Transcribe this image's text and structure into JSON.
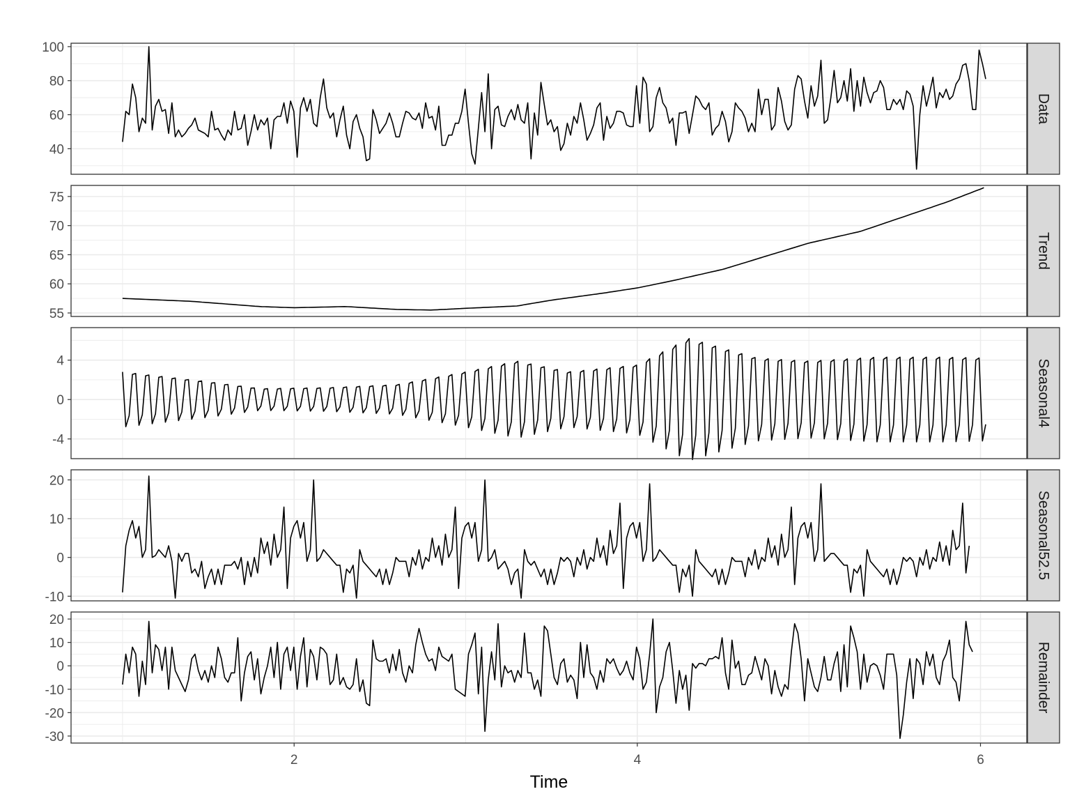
{
  "chart_data": {
    "type": "line",
    "xlabel": "Time",
    "x_ticks": [
      2,
      4,
      6
    ],
    "x_minor_ticks": [
      1,
      3,
      5
    ],
    "xlim": [
      0.7,
      6.27
    ],
    "x_start": 1.0,
    "x_step": 0.0192,
    "grid": true,
    "line_color": "#000000",
    "grid_color": "#ebebeb",
    "strip_fill": "#d9d9d9",
    "panels": [
      {
        "name": "Data",
        "ylim": [
          25,
          102
        ],
        "y_ticks": [
          40,
          60,
          80,
          100
        ],
        "y_minor_ticks": [
          30,
          50,
          70,
          90
        ],
        "values": [
          44,
          62,
          60,
          78,
          70,
          50,
          58,
          55,
          100,
          51,
          65,
          69,
          62,
          63,
          49,
          67,
          47,
          51,
          47,
          49,
          52,
          54,
          58,
          51,
          50,
          49,
          47,
          62,
          51,
          52,
          48,
          45,
          51,
          48,
          62,
          51,
          52,
          60,
          42,
          50,
          60,
          51,
          57,
          54,
          58,
          40,
          57,
          59,
          59,
          67,
          55,
          68,
          62,
          35,
          64,
          70,
          62,
          69,
          55,
          53,
          70,
          81,
          64,
          58,
          61,
          47,
          57,
          65,
          48,
          40,
          56,
          60,
          52,
          47,
          33,
          34,
          63,
          57,
          49,
          52,
          55,
          61,
          55,
          47,
          47,
          55,
          62,
          61,
          58,
          57,
          61,
          52,
          67,
          58,
          59,
          51,
          65,
          42,
          42,
          48,
          48,
          55,
          55,
          62,
          75,
          55,
          37,
          31,
          52,
          73,
          50,
          84,
          40,
          63,
          65,
          54,
          53,
          59,
          63,
          57,
          66,
          57,
          55,
          67,
          34,
          61,
          48,
          79,
          66,
          54,
          57,
          50,
          53,
          39,
          43,
          55,
          48,
          59,
          55,
          67,
          57,
          45,
          49,
          54,
          64,
          67,
          45,
          59,
          52,
          55,
          62,
          62,
          61,
          54,
          53,
          53,
          77,
          55,
          82,
          78,
          50,
          53,
          70,
          76,
          67,
          64,
          55,
          58,
          42,
          61,
          61,
          62,
          49,
          60,
          71,
          69,
          65,
          63,
          67,
          48,
          52,
          54,
          62,
          56,
          44,
          50,
          67,
          64,
          62,
          58,
          50,
          55,
          50,
          75,
          60,
          69,
          69,
          51,
          54,
          76,
          68,
          56,
          51,
          54,
          75,
          83,
          81,
          68,
          58,
          77,
          65,
          71,
          92,
          55,
          57,
          70,
          86,
          67,
          70,
          80,
          68,
          87,
          62,
          80,
          65,
          82,
          73,
          67,
          73,
          74,
          80,
          76,
          63,
          63,
          69,
          66,
          69,
          63,
          74,
          72,
          65,
          28,
          60,
          77,
          65,
          73,
          82,
          64,
          73,
          70,
          75,
          69,
          71,
          78,
          81,
          89,
          90,
          80,
          63,
          63,
          98,
          90,
          81
        ]
      },
      {
        "name": "Trend",
        "ylim": [
          54.4,
          76.9
        ],
        "y_ticks": [
          55,
          60,
          65,
          70,
          75
        ],
        "y_minor_ticks": [
          57.5,
          62.5,
          67.5,
          72.5
        ],
        "knots_x": [
          1.0,
          1.4,
          1.8,
          2.0,
          2.3,
          2.6,
          2.8,
          3.0,
          3.3,
          3.5,
          3.8,
          4.0,
          4.2,
          4.5,
          4.8,
          5.0,
          5.3,
          5.6,
          5.8,
          6.02
        ],
        "knots_y": [
          57.5,
          57.0,
          56.1,
          55.9,
          56.1,
          55.6,
          55.5,
          55.8,
          56.2,
          57.2,
          58.4,
          59.3,
          60.5,
          62.5,
          65.2,
          67.0,
          69.0,
          72.0,
          74.0,
          76.5
        ]
      },
      {
        "name": "Seasonal4",
        "ylim": [
          -6,
          7.3
        ],
        "y_ticks": [
          -4,
          0,
          4
        ],
        "y_minor_ticks": [
          -6,
          -2,
          2,
          6
        ],
        "amp_x": [
          1.0,
          1.5,
          1.8,
          2.2,
          2.6,
          3.0,
          3.3,
          3.6,
          4.0,
          4.3,
          4.7,
          5.0,
          5.4,
          5.8,
          6.02
        ],
        "amp_y": [
          2.8,
          1.8,
          1.1,
          1.2,
          1.5,
          2.8,
          3.9,
          2.8,
          3.5,
          6.2,
          4.2,
          3.9,
          4.3,
          4.3,
          4.2
        ]
      },
      {
        "name": "Seasonal52.5",
        "ylim": [
          -11.2,
          22.6
        ],
        "y_ticks": [
          -10,
          0,
          10,
          20
        ],
        "y_minor_ticks": [
          -5,
          5,
          15
        ],
        "values": [
          -9,
          3,
          7,
          9.5,
          5,
          8,
          0,
          2,
          21,
          0,
          0.5,
          2,
          1,
          0,
          3,
          -1,
          -10.5,
          1,
          -1,
          1,
          1,
          -4,
          -3,
          -5,
          -1,
          -8,
          -5,
          -3,
          -7,
          -3,
          -7,
          -2,
          -2,
          -2,
          -1,
          -3,
          0,
          -7,
          -1,
          -5,
          0,
          -4,
          5,
          1,
          4,
          -2,
          6,
          0,
          2,
          13,
          -8,
          5,
          8,
          9.5,
          5,
          9,
          -1,
          2,
          20,
          -1,
          0,
          2,
          1,
          0,
          -1,
          -2,
          -2,
          -9,
          -3,
          -4,
          -2,
          -10.5,
          2,
          -1,
          -2,
          -3,
          -4,
          -5,
          -3,
          -7,
          -3,
          -7,
          -4,
          0,
          -1,
          -1,
          -1,
          -5,
          0,
          -2,
          2,
          -3,
          0,
          -1,
          5,
          0,
          3,
          -2,
          6,
          0,
          2,
          13,
          -8,
          5,
          8,
          9,
          5,
          9,
          -1,
          2,
          20,
          -1,
          0,
          2,
          -3,
          -2,
          -1,
          -3,
          -7,
          -4,
          -3,
          -10.5,
          2,
          -1,
          -2,
          -1,
          -3,
          -5,
          -3,
          -7,
          -3,
          -7,
          -4,
          0,
          -1,
          0,
          -1,
          -5,
          0,
          -2,
          2,
          -3,
          0,
          -1,
          5,
          0,
          3,
          -2,
          7,
          1,
          3,
          14,
          -8,
          5,
          8,
          9,
          5,
          9,
          -1,
          2,
          19,
          -1,
          0,
          2,
          1,
          0,
          -1,
          -2,
          -2,
          -9,
          -3,
          -5,
          -2,
          -10,
          2,
          -1,
          -2,
          -3,
          -4,
          -5,
          -3,
          -7,
          -3,
          -7,
          -4,
          0,
          -1,
          -1,
          -1,
          -5,
          0,
          -2,
          2,
          -3,
          0,
          -1,
          5,
          0,
          3,
          -2,
          6,
          0,
          2,
          13,
          -7,
          5,
          8,
          9,
          5,
          9,
          -1,
          2,
          19,
          -1,
          0,
          1,
          1,
          0,
          -1,
          -2,
          -2,
          -9,
          -3,
          -4,
          -2,
          -10,
          2,
          -1,
          -2,
          -3,
          -4,
          -5,
          -3,
          -7,
          -3,
          -7,
          -4,
          0,
          -1,
          0,
          -1,
          -5,
          0,
          -2,
          2,
          -3,
          0,
          -1,
          4,
          -1,
          3,
          -2,
          7,
          2,
          3,
          14,
          -4,
          3
        ]
      },
      {
        "name": "Remainder",
        "ylim": [
          -33,
          23
        ],
        "y_ticks": [
          -30,
          -20,
          -10,
          0,
          10,
          20
        ],
        "y_minor_ticks": [
          -25,
          -15,
          -5,
          5,
          15
        ],
        "values": [
          -8,
          5,
          -3,
          8,
          5,
          -13,
          2,
          -8,
          19,
          -3,
          9,
          7,
          -2,
          8,
          -10,
          8,
          -2,
          -5,
          -8,
          -11,
          -6,
          3,
          5,
          -2,
          -6,
          -2,
          -7,
          0,
          -5,
          8,
          3,
          -5,
          -7,
          -3,
          -3,
          12,
          -15,
          -3,
          4,
          6,
          -6,
          3,
          -12,
          -5,
          0,
          8,
          -5,
          10,
          -10,
          5,
          8,
          -2,
          8,
          -10,
          4,
          12,
          -9,
          7,
          4,
          -6,
          8,
          7,
          5,
          -8,
          -6,
          5,
          -8,
          -5,
          -9,
          -10,
          -8,
          3,
          -11,
          -6,
          -16,
          -17,
          11,
          3,
          2,
          2,
          3,
          -3,
          5,
          -2,
          7,
          -3,
          -7,
          0,
          -3,
          9,
          16,
          10,
          5,
          2,
          3,
          -2,
          8,
          4,
          3,
          2,
          5,
          -10,
          -11,
          -12,
          -13,
          5,
          9,
          14,
          -12,
          8,
          -28,
          -6,
          6,
          -6,
          18,
          -9,
          0,
          -3,
          -2,
          -7,
          -2,
          -5,
          14,
          -3,
          -3,
          -10,
          -6,
          -13,
          17,
          15,
          5,
          -5,
          -8,
          1,
          3,
          -7,
          -4,
          -6,
          -14,
          10,
          -5,
          9,
          -3,
          -5,
          -10,
          -2,
          -7,
          3,
          1,
          3,
          -1,
          -4,
          -2,
          2,
          -3,
          -6,
          8,
          3,
          -10,
          -7,
          5,
          20,
          -20,
          -9,
          -5,
          6,
          10,
          -2,
          -16,
          -2,
          -10,
          -4,
          -19,
          1,
          -1,
          1,
          1,
          0,
          3,
          3,
          4,
          3,
          12,
          -3,
          -10,
          11,
          -1,
          2,
          -8,
          -8,
          -4,
          -3,
          4,
          -1,
          -6,
          3,
          0,
          -12,
          -2,
          -9,
          -13,
          -8,
          -10,
          6,
          18,
          14,
          3,
          -15,
          3,
          -3,
          -9,
          -11,
          -5,
          4,
          -6,
          -6,
          1,
          6,
          -11,
          9,
          -9,
          17,
          12,
          6,
          -10,
          5,
          -7,
          0,
          1,
          0,
          -4,
          -10,
          5,
          5,
          5,
          -4,
          -31,
          -21,
          -7,
          3,
          -14,
          3,
          1,
          -8,
          6,
          0,
          5,
          -5,
          -8,
          2,
          5,
          11,
          -5,
          -7,
          -15,
          1,
          19,
          9,
          6
        ]
      }
    ]
  }
}
